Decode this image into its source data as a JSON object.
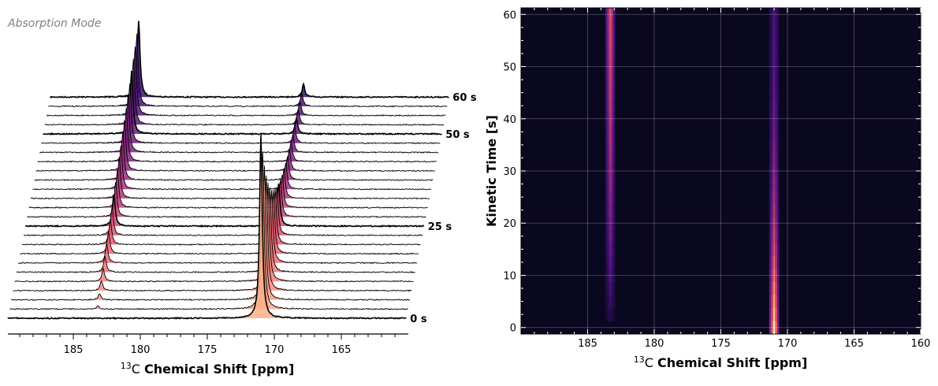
{
  "chart_data": [
    {
      "type": "waterfall",
      "annotation": "Absorption Mode",
      "xlabel_sup": "13",
      "xlabel_prefix": "C ",
      "xlabel": "Chemical Shift [ppm]",
      "xlim": [
        190,
        160
      ],
      "xticks": [
        185,
        180,
        175,
        170,
        165
      ],
      "times": [
        0,
        2.5,
        5,
        7.5,
        10,
        12.5,
        15,
        17.5,
        20,
        22.5,
        25,
        27.5,
        30,
        32.5,
        35,
        37.5,
        40,
        42.5,
        45,
        47.5,
        50,
        52.5,
        55,
        57.5,
        60
      ],
      "trace_labels": [
        {
          "time": 0,
          "text": "0 s"
        },
        {
          "time": 25,
          "text": "25 s"
        },
        {
          "time": 50,
          "text": "50 s"
        },
        {
          "time": 60,
          "text": "60 s"
        }
      ],
      "peaks": [
        {
          "ppm": 183.3,
          "intensity": [
            0,
            0.017,
            0.034,
            0.052,
            0.069,
            0.086,
            0.103,
            0.121,
            0.138,
            0.155,
            0.172,
            0.19,
            0.207,
            0.224,
            0.241,
            0.259,
            0.276,
            0.293,
            0.31,
            0.328,
            0.345,
            0.362,
            0.379,
            0.397,
            0.414
          ]
        },
        {
          "ppm": 171.0,
          "intensity": [
            1.0,
            0.854,
            0.731,
            0.627,
            0.538,
            0.464,
            0.401,
            0.347,
            0.302,
            0.263,
            0.231,
            0.203,
            0.18,
            0.16,
            0.144,
            0.13,
            0.118,
            0.108,
            0.099,
            0.092,
            0.085,
            0.08,
            0.076,
            0.072,
            0.069
          ]
        }
      ],
      "fill_colormap": "magma_r",
      "fill_colors": [
        "#fcb08a",
        "#e8556e",
        "#8c2981",
        "#3b0f70"
      ]
    },
    {
      "type": "heatmap",
      "xlabel_sup": "13",
      "xlabel_prefix": "C ",
      "xlabel": "Chemical Shift [ppm]",
      "ylabel": "Kinetic Time [s]",
      "xlim": [
        190,
        160
      ],
      "ylim": [
        -1.25,
        61.25
      ],
      "xticks": [
        185,
        180,
        175,
        170,
        165,
        160
      ],
      "yticks": [
        0,
        10,
        20,
        30,
        40,
        50,
        60
      ],
      "grid": true,
      "colormap": "magma",
      "background_color": "#0a0720"
    }
  ]
}
